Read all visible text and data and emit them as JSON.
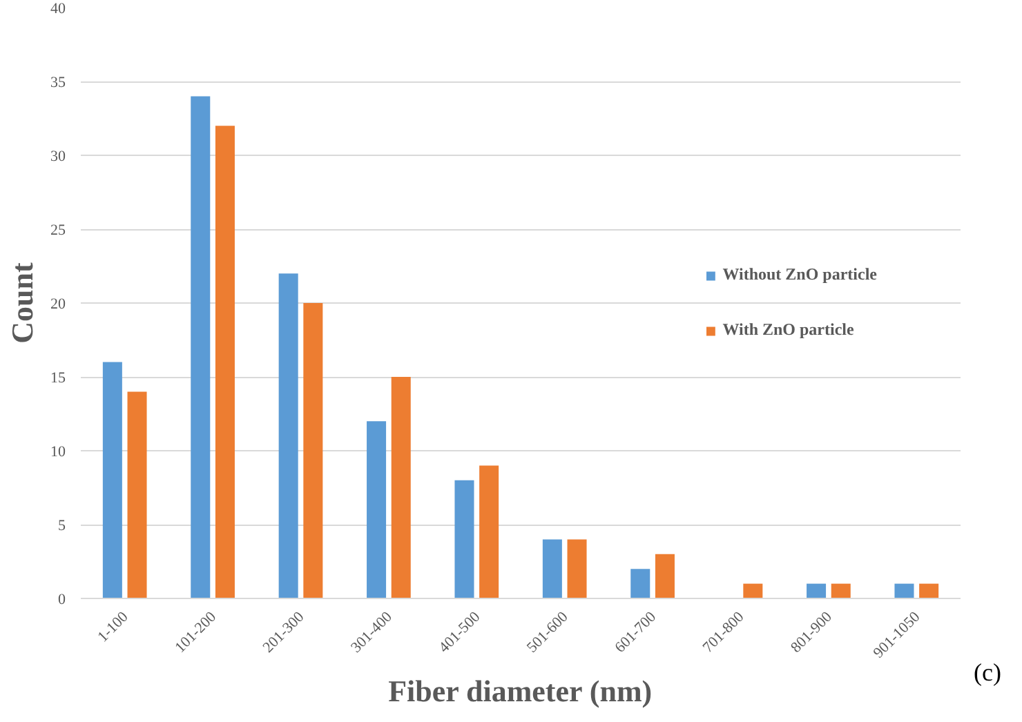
{
  "chart_data": {
    "type": "bar",
    "xlabel": "Fiber diameter (nm)",
    "ylabel": "Count",
    "categories": [
      "1-100",
      "101-200",
      "201-300",
      "301-400",
      "401-500",
      "501-600",
      "601-700",
      "701-800",
      "801-900",
      "901-1050"
    ],
    "series": [
      {
        "name": "Without ZnO particle",
        "color": "#5b9bd5",
        "values": [
          16,
          34,
          22,
          12,
          8,
          4,
          2,
          0,
          1,
          1
        ]
      },
      {
        "name": "With ZnO particle",
        "color": "#ed7d31",
        "values": [
          14,
          32,
          20,
          15,
          9,
          4,
          3,
          1,
          1,
          1
        ]
      }
    ],
    "ylim": [
      0,
      40
    ],
    "yticks": [
      0,
      5,
      10,
      15,
      20,
      25,
      30,
      35,
      40
    ],
    "grid": "y",
    "legend": "right",
    "annotations": [
      "(c)"
    ]
  }
}
